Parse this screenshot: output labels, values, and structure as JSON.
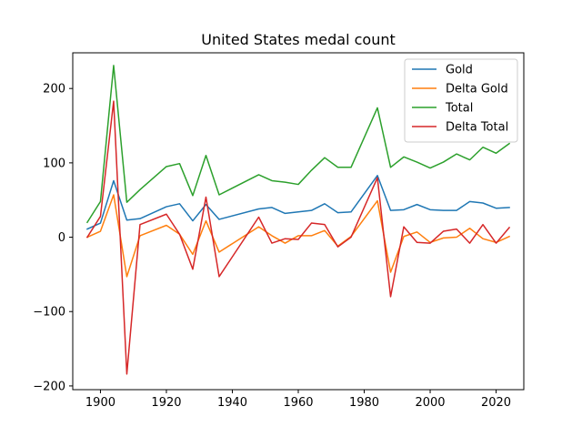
{
  "chart_data": {
    "type": "line",
    "title": "United States medal count",
    "xlabel": "",
    "ylabel": "",
    "xlim": [
      1891.6,
      2028.4
    ],
    "ylim": [
      -205,
      248
    ],
    "x_ticks": [
      1900,
      1920,
      1940,
      1960,
      1980,
      2000,
      2020
    ],
    "y_ticks": [
      -200,
      -100,
      0,
      100,
      200
    ],
    "y_tick_labels": [
      "−200",
      "−100",
      "0",
      "100",
      "200"
    ],
    "grid": false,
    "legend_position": "top-right",
    "x": [
      1896,
      1900,
      1904,
      1908,
      1912,
      1920,
      1924,
      1928,
      1932,
      1936,
      1948,
      1952,
      1956,
      1960,
      1964,
      1968,
      1972,
      1976,
      1984,
      1988,
      1992,
      1996,
      2000,
      2004,
      2008,
      2012,
      2016,
      2020,
      2024
    ],
    "series": [
      {
        "name": "Gold",
        "color": "#1f77b4",
        "values": [
          11,
          19,
          76,
          23,
          25,
          41,
          45,
          22,
          44,
          24,
          38,
          40,
          32,
          34,
          36,
          45,
          33,
          34,
          83,
          36,
          37,
          44,
          37,
          36,
          36,
          48,
          46,
          39,
          40
        ]
      },
      {
        "name": "Delta Gold",
        "color": "#ff7f0e",
        "values": [
          0,
          8,
          57,
          -53,
          2,
          16,
          4,
          -23,
          22,
          -20,
          14,
          2,
          -8,
          2,
          2,
          9,
          -12,
          1,
          49,
          -47,
          1,
          7,
          -7,
          -1,
          0,
          12,
          -2,
          -7,
          1
        ]
      },
      {
        "name": "Total",
        "color": "#2ca02c",
        "values": [
          20,
          48,
          231,
          47,
          64,
          95,
          99,
          56,
          110,
          57,
          84,
          76,
          74,
          71,
          90,
          107,
          94,
          94,
          174,
          94,
          108,
          101,
          93,
          101,
          112,
          104,
          121,
          113,
          126
        ]
      },
      {
        "name": "Delta Total",
        "color": "#d62728",
        "values": [
          0,
          28,
          183,
          -184,
          17,
          31,
          4,
          -43,
          54,
          -53,
          27,
          -8,
          -2,
          -3,
          19,
          17,
          -13,
          0,
          80,
          -80,
          14,
          -7,
          -8,
          8,
          11,
          -8,
          17,
          -8,
          13
        ]
      }
    ]
  }
}
